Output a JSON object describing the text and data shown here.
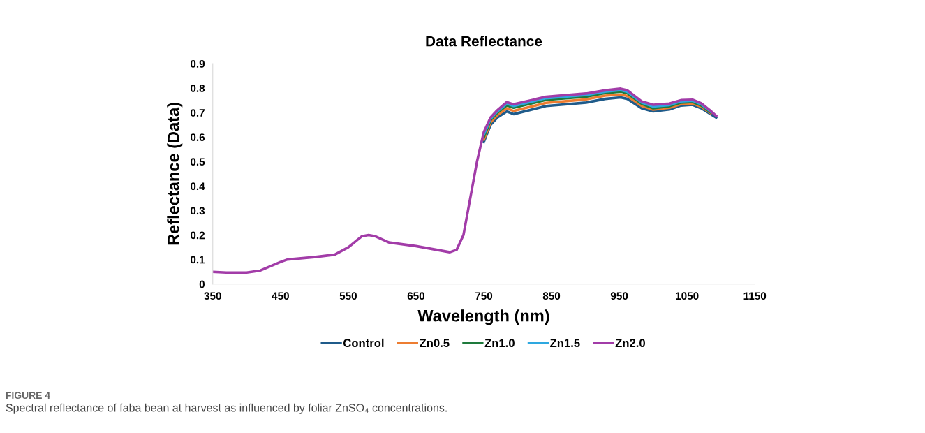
{
  "chart_data": {
    "type": "line",
    "title": "Data Reflectance",
    "xlabel": "Wavelength (nm)",
    "ylabel": "Reflectance (Data)",
    "x": [
      350,
      370,
      400,
      420,
      450,
      460,
      500,
      530,
      550,
      570,
      580,
      590,
      610,
      650,
      670,
      700,
      710,
      720,
      730,
      740,
      750,
      760,
      770,
      784,
      794,
      842,
      901,
      929,
      952,
      962,
      983,
      1000,
      1024,
      1041,
      1058,
      1071,
      1085,
      1093
    ],
    "series": [
      {
        "name": "Control",
        "color": "#1f5b8a",
        "values": [
          null,
          null,
          null,
          null,
          null,
          null,
          null,
          null,
          null,
          null,
          null,
          null,
          null,
          null,
          null,
          null,
          null,
          null,
          null,
          null,
          0.58,
          0.65,
          0.68,
          0.705,
          0.694,
          0.727,
          0.741,
          0.756,
          0.762,
          0.756,
          0.718,
          0.705,
          0.713,
          0.729,
          0.732,
          0.718,
          0.694,
          0.68
        ]
      },
      {
        "name": "Zn0.5",
        "color": "#ed7d31",
        "values": [
          null,
          null,
          null,
          null,
          null,
          null,
          null,
          null,
          null,
          null,
          null,
          null,
          null,
          null,
          null,
          null,
          null,
          null,
          null,
          null,
          0.59,
          0.66,
          0.69,
          0.718,
          0.707,
          0.74,
          0.754,
          0.769,
          0.774,
          0.768,
          0.728,
          0.712,
          0.72,
          0.735,
          0.738,
          0.724,
          0.698,
          null
        ]
      },
      {
        "name": "Zn1.0",
        "color": "#1e7a3c",
        "values": [
          null,
          null,
          null,
          null,
          null,
          null,
          null,
          null,
          null,
          null,
          null,
          null,
          null,
          null,
          null,
          null,
          null,
          null,
          null,
          null,
          0.6,
          0.67,
          0.7,
          0.73,
          0.72,
          0.752,
          0.765,
          0.78,
          0.786,
          0.779,
          0.736,
          0.718,
          0.726,
          0.741,
          0.744,
          0.729,
          0.701,
          null
        ]
      },
      {
        "name": "Zn1.5",
        "color": "#2ea8e0",
        "values": [
          null,
          null,
          null,
          null,
          null,
          null,
          null,
          null,
          null,
          null,
          null,
          null,
          null,
          null,
          null,
          null,
          null,
          null,
          null,
          null,
          0.61,
          0.675,
          0.705,
          0.737,
          0.727,
          0.759,
          0.772,
          0.786,
          0.792,
          0.785,
          0.741,
          0.725,
          0.731,
          0.746,
          0.749,
          0.734,
          0.704,
          null
        ]
      },
      {
        "name": "Zn2.0",
        "color": "#a23ca8",
        "values": [
          0.05,
          0.047,
          0.047,
          0.055,
          0.09,
          0.1,
          0.11,
          0.12,
          0.15,
          0.195,
          0.2,
          0.195,
          0.17,
          0.155,
          0.145,
          0.13,
          0.14,
          0.2,
          0.35,
          0.5,
          0.62,
          0.68,
          0.71,
          0.743,
          0.734,
          0.765,
          0.778,
          0.791,
          0.798,
          0.791,
          0.746,
          0.732,
          0.737,
          0.751,
          0.753,
          0.738,
          0.707,
          0.687
        ]
      }
    ],
    "xlim": [
      350,
      1150
    ],
    "xticks": [
      350,
      450,
      550,
      650,
      750,
      850,
      950,
      1050,
      1150
    ],
    "ylim": [
      0,
      0.9
    ],
    "yticks": [
      0,
      0.1,
      0.2,
      0.3,
      0.4,
      0.5,
      0.6,
      0.7,
      0.8,
      0.9
    ],
    "grid": false,
    "legend": "bottom",
    "marker": "none",
    "line_style": "solid",
    "annotations": [
      "FIGURE 4",
      "Spectral reflectance of faba bean at harvest as influenced by foliar ZnSO₄ concentrations."
    ]
  }
}
